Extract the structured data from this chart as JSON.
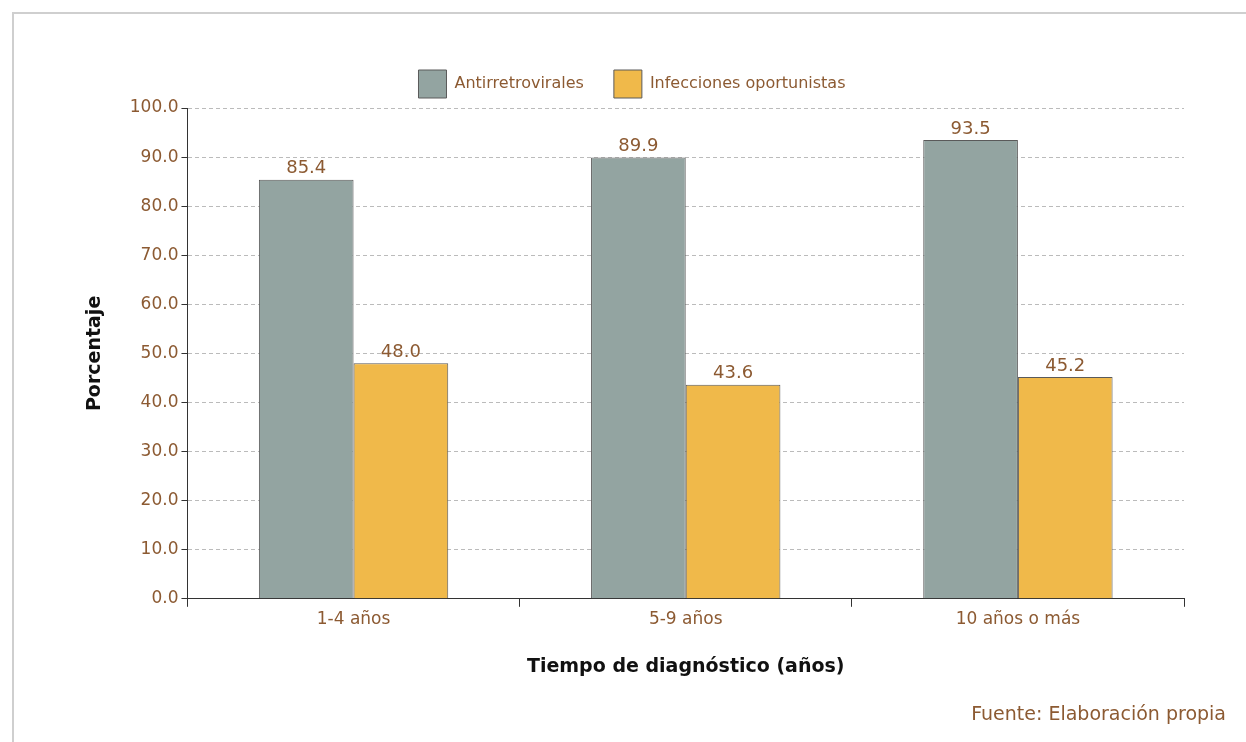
{
  "chart_data": {
    "type": "bar",
    "xlabel": "Tiempo de diagnóstico (años)",
    "ylabel": "Porcentaje",
    "categories": [
      "1-4 años",
      "5-9 años",
      "10 años o más"
    ],
    "series": [
      {
        "name": "Antirretrovirales",
        "color": "#93a4a1",
        "values": [
          85.4,
          89.9,
          93.5
        ]
      },
      {
        "name": "Infecciones oportunistas",
        "color": "#f0b94a",
        "values": [
          48.0,
          43.6,
          45.2
        ]
      }
    ],
    "ylim": [
      0,
      100
    ],
    "yticks": [
      {
        "value": 0,
        "label": "0.0"
      },
      {
        "value": 10,
        "label": "10.0"
      },
      {
        "value": 20,
        "label": "20.0"
      },
      {
        "value": 30,
        "label": "30.0"
      },
      {
        "value": 40,
        "label": "40.0"
      },
      {
        "value": 50,
        "label": "50.0"
      },
      {
        "value": 60,
        "label": "60.0"
      },
      {
        "value": 70,
        "label": "70.0"
      },
      {
        "value": 80,
        "label": "80.0"
      },
      {
        "value": 90,
        "label": "90.0"
      },
      {
        "value": 100,
        "label": "100.0"
      }
    ],
    "value_labels": [
      [
        "85.4",
        "89.9",
        "93.5"
      ],
      [
        "48.0",
        "43.6",
        "45.2"
      ]
    ],
    "grid": "y",
    "legend": "top",
    "annotations": [
      "Fuente: Elaboración propia"
    ]
  }
}
